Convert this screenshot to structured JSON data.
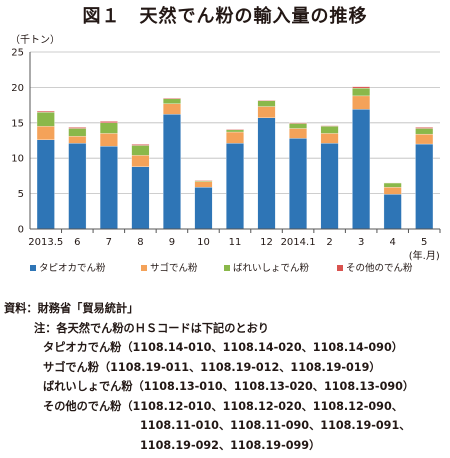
{
  "page": {
    "title": "図１　天然でん粉の輸入量の推移",
    "unit_label": "（千トン）"
  },
  "notes": {
    "source_label": "資料：",
    "source_text": "財務省「貿易統計」",
    "note_label": "注：",
    "note_intro": "各天然でん粉のＨＳコードは下記のとおり",
    "lines": [
      {
        "name": "タピオカでん粉",
        "codes": "（1108.14-010、1108.14-020、1108.14-090）"
      },
      {
        "name": "サゴでん粉",
        "codes": "（1108.19-011、1108.19-012、1108.19-019）"
      },
      {
        "name": "ばれいしょでん粉",
        "codes": "（1108.13-010、1108.13-020、1108.13-090）"
      },
      {
        "name": "その他のでん粉",
        "codes": "（1108.12-010、1108.12-020、1108.12-090、"
      }
    ],
    "continuation": [
      "1108.11-010、1108.11-090、1108.19-091、",
      "1108.19-092、1108.19-099）"
    ]
  },
  "chart_data": {
    "type": "bar",
    "stacked": true,
    "categories": [
      "2013.5",
      "6",
      "7",
      "8",
      "9",
      "10",
      "11",
      "12",
      "2014.1",
      "2",
      "3",
      "4",
      "5"
    ],
    "x_unit_label": "(年.月)",
    "ylim": [
      0,
      25
    ],
    "yticks": [
      0,
      5,
      10,
      15,
      20,
      25
    ],
    "grid": true,
    "legend_position": "bottom",
    "series": [
      {
        "name": "タピオカでん粉",
        "color": "#2e75b6",
        "values": [
          12.6,
          12.1,
          11.7,
          8.8,
          16.2,
          5.9,
          12.1,
          15.7,
          12.8,
          12.1,
          16.9,
          4.9,
          12.0
        ]
      },
      {
        "name": "サゴでん粉",
        "color": "#f4a259",
        "values": [
          1.9,
          1.0,
          1.8,
          1.6,
          1.5,
          0.8,
          1.6,
          1.6,
          1.4,
          1.4,
          1.9,
          1.0,
          1.4
        ]
      },
      {
        "name": "ばれいしょでん粉",
        "color": "#8ab84a",
        "values": [
          2.0,
          1.1,
          1.5,
          1.4,
          0.7,
          0.1,
          0.3,
          0.8,
          0.7,
          1.0,
          1.1,
          0.6,
          0.8
        ]
      },
      {
        "name": "その他のでん粉",
        "color": "#d9534f",
        "values": [
          0.15,
          0.15,
          0.2,
          0.15,
          0.1,
          0.1,
          0.1,
          0.1,
          0.1,
          0.1,
          0.2,
          0.05,
          0.15
        ]
      }
    ]
  }
}
